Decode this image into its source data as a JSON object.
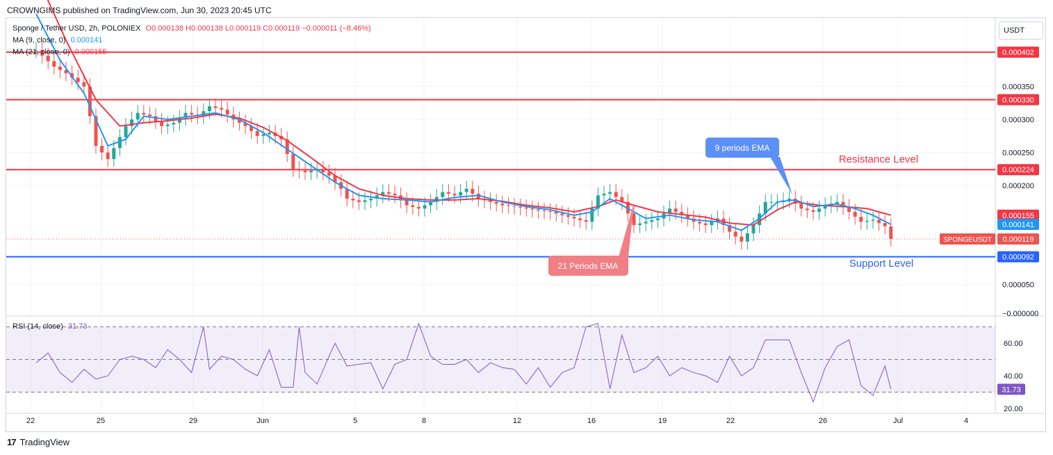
{
  "header": {
    "text": "CROWNGIMS published on TradingView.com, Jun 30, 2023 20:45 UTC"
  },
  "legend": {
    "symbol": "Sponge / Tether USD, 2h, POLONIEX",
    "ohlc": "O0.000138 H0.000138 L0.000119 C0.000119 −0.000011 (−8.46%)",
    "ma9_label": "MA (9, close, 0)",
    "ma9_value": "0.000141",
    "ma21_label": "MA (21, close, 0)",
    "ma21_value": "0.000155",
    "rsi_label": "RSI (14, close)",
    "rsi_value": "31.73"
  },
  "currency_button": "USDT",
  "footer": {
    "logo": "17",
    "brand": "TradingView"
  },
  "annotations": {
    "ema9": "9 periods EMA",
    "ema21": "21 Periods EMA",
    "resistance": "Resistance Level",
    "support": "Support Level"
  },
  "colors": {
    "up": "#26a69a",
    "down": "#ef5350",
    "ma9": "#2196f3",
    "ma21": "#f23645",
    "level_red": "#f23645",
    "level_blue": "#2962ff",
    "rsi": "#7e57c2"
  },
  "chart_data": {
    "type": "candlestick",
    "price_axis": {
      "ticks": [
        0.00035,
        0.0003,
        0.00025,
        0.0002,
        5e-05
      ],
      "labels": [
        "0.000350",
        "0.000300",
        "0.000250",
        "0.000200",
        "0.000050"
      ],
      "bottom_label": "−0.000000"
    },
    "levels": [
      {
        "value": 0.000402,
        "label": "0.000402",
        "color": "red"
      },
      {
        "value": 0.00033,
        "label": "0.000330",
        "color": "red"
      },
      {
        "value": 0.000224,
        "label": "0.000224",
        "color": "red"
      },
      {
        "value": 9.2e-05,
        "label": "0.000092",
        "color": "blue"
      }
    ],
    "price_tags": [
      {
        "value": 0.000155,
        "label": "0.000155",
        "type": "ma21"
      },
      {
        "value": 0.000141,
        "label": "0.000141",
        "type": "ma9"
      },
      {
        "value": 0.000119,
        "label": "0.000119",
        "type": "last",
        "symbol": "SPONGEUSDT"
      }
    ],
    "x_ticks": [
      "22",
      "25",
      "29",
      "Jun",
      "5",
      "8",
      "12",
      "16",
      "19",
      "22",
      "26",
      "Jul",
      "4"
    ],
    "close_path": [
      [
        0,
        0.000405
      ],
      [
        3,
        0.00038
      ],
      [
        5,
        0.00037
      ],
      [
        8,
        0.00035
      ],
      [
        10,
        0.00026
      ],
      [
        12,
        0.00024
      ],
      [
        15,
        0.00029
      ],
      [
        17,
        0.00031
      ],
      [
        19,
        0.000305
      ],
      [
        21,
        0.00029
      ],
      [
        23,
        0.000295
      ],
      [
        25,
        0.00031
      ],
      [
        27,
        0.000305
      ],
      [
        29,
        0.00032
      ],
      [
        31,
        0.000315
      ],
      [
        33,
        0.0003
      ],
      [
        35,
        0.00029
      ],
      [
        37,
        0.000275
      ],
      [
        39,
        0.00028
      ],
      [
        41,
        0.00027
      ],
      [
        43,
        0.000225
      ],
      [
        45,
        0.00022
      ],
      [
        47,
        0.000225
      ],
      [
        49,
        0.000215
      ],
      [
        51,
        0.000195
      ],
      [
        52,
        0.00018
      ],
      [
        54,
        0.000175
      ],
      [
        56,
        0.00018
      ],
      [
        58,
        0.00019
      ],
      [
        60,
        0.000185
      ],
      [
        62,
        0.00017
      ],
      [
        64,
        0.000165
      ],
      [
        66,
        0.000175
      ],
      [
        68,
        0.00019
      ],
      [
        70,
        0.000185
      ],
      [
        72,
        0.000195
      ],
      [
        74,
        0.00018
      ],
      [
        76,
        0.000175
      ],
      [
        78,
        0.00017
      ],
      [
        80,
        0.000168
      ],
      [
        82,
        0.000165
      ],
      [
        84,
        0.000162
      ],
      [
        86,
        0.00016
      ],
      [
        88,
        0.000155
      ],
      [
        90,
        0.00015
      ],
      [
        92,
        0.000145
      ],
      [
        94,
        0.000185
      ],
      [
        96,
        0.00019
      ],
      [
        98,
        0.000175
      ],
      [
        100,
        0.00014
      ],
      [
        102,
        0.000145
      ],
      [
        104,
        0.00015
      ],
      [
        106,
        0.000165
      ],
      [
        108,
        0.000155
      ],
      [
        110,
        0.000145
      ],
      [
        112,
        0.00014
      ],
      [
        114,
        0.00015
      ],
      [
        116,
        0.00013
      ],
      [
        118,
        0.000115
      ],
      [
        120,
        0.00014
      ],
      [
        122,
        0.000175
      ],
      [
        124,
        0.000175
      ],
      [
        126,
        0.00018
      ],
      [
        128,
        0.000165
      ],
      [
        130,
        0.00016
      ],
      [
        132,
        0.00017
      ],
      [
        134,
        0.000175
      ],
      [
        136,
        0.00016
      ],
      [
        138,
        0.000145
      ],
      [
        140,
        0.000148
      ],
      [
        142,
        0.000138
      ],
      [
        143,
        0.000119
      ]
    ],
    "ema9_path": [
      [
        0,
        0.00046
      ],
      [
        4,
        0.00039
      ],
      [
        8,
        0.00034
      ],
      [
        12,
        0.00026
      ],
      [
        15,
        0.00027
      ],
      [
        18,
        0.000305
      ],
      [
        22,
        0.0003
      ],
      [
        26,
        0.000305
      ],
      [
        30,
        0.00031
      ],
      [
        34,
        0.0003
      ],
      [
        38,
        0.00028
      ],
      [
        42,
        0.000255
      ],
      [
        46,
        0.00023
      ],
      [
        50,
        0.000205
      ],
      [
        54,
        0.000185
      ],
      [
        58,
        0.00018
      ],
      [
        62,
        0.000178
      ],
      [
        66,
        0.000175
      ],
      [
        70,
        0.000182
      ],
      [
        74,
        0.000185
      ],
      [
        78,
        0.000175
      ],
      [
        82,
        0.000168
      ],
      [
        86,
        0.000163
      ],
      [
        90,
        0.000155
      ],
      [
        93,
        0.00016
      ],
      [
        96,
        0.00018
      ],
      [
        99,
        0.000165
      ],
      [
        102,
        0.00015
      ],
      [
        106,
        0.000155
      ],
      [
        110,
        0.000148
      ],
      [
        114,
        0.000145
      ],
      [
        118,
        0.000132
      ],
      [
        121,
        0.00015
      ],
      [
        124,
        0.000175
      ],
      [
        127,
        0.000178
      ],
      [
        130,
        0.000168
      ],
      [
        134,
        0.000172
      ],
      [
        137,
        0.000165
      ],
      [
        140,
        0.000155
      ],
      [
        143,
        0.000141
      ]
    ],
    "ema21_path": [
      [
        0,
        0.00052
      ],
      [
        5,
        0.00042
      ],
      [
        10,
        0.00033
      ],
      [
        14,
        0.00029
      ],
      [
        18,
        0.000295
      ],
      [
        22,
        0.000298
      ],
      [
        26,
        0.000302
      ],
      [
        30,
        0.000308
      ],
      [
        34,
        0.000302
      ],
      [
        38,
        0.000288
      ],
      [
        42,
        0.000268
      ],
      [
        46,
        0.000242
      ],
      [
        50,
        0.000215
      ],
      [
        54,
        0.000195
      ],
      [
        58,
        0.000185
      ],
      [
        62,
        0.00018
      ],
      [
        66,
        0.000178
      ],
      [
        70,
        0.000178
      ],
      [
        74,
        0.00018
      ],
      [
        78,
        0.000176
      ],
      [
        82,
        0.00017
      ],
      [
        86,
        0.000166
      ],
      [
        90,
        0.00016
      ],
      [
        94,
        0.000168
      ],
      [
        97,
        0.000178
      ],
      [
        100,
        0.00017
      ],
      [
        104,
        0.00016
      ],
      [
        108,
        0.000156
      ],
      [
        112,
        0.000152
      ],
      [
        116,
        0.000143
      ],
      [
        120,
        0.00014
      ],
      [
        124,
        0.000163
      ],
      [
        127,
        0.000175
      ],
      [
        131,
        0.00017
      ],
      [
        135,
        0.000168
      ],
      [
        139,
        0.000165
      ],
      [
        143,
        0.000155
      ]
    ],
    "rsi": {
      "value": 31.73,
      "ticks": [
        60,
        40,
        20
      ],
      "tick_labels": [
        "60.00",
        "40.00",
        "20.00"
      ],
      "band": [
        30,
        70
      ],
      "path": [
        [
          0,
          48
        ],
        [
          2,
          54
        ],
        [
          4,
          42
        ],
        [
          6,
          36
        ],
        [
          8,
          44
        ],
        [
          10,
          38
        ],
        [
          12,
          40
        ],
        [
          14,
          50
        ],
        [
          16,
          52
        ],
        [
          18,
          50
        ],
        [
          20,
          45
        ],
        [
          22,
          56
        ],
        [
          24,
          50
        ],
        [
          26,
          42
        ],
        [
          28,
          70
        ],
        [
          29,
          44
        ],
        [
          31,
          52
        ],
        [
          33,
          50
        ],
        [
          35,
          44
        ],
        [
          37,
          40
        ],
        [
          39,
          56
        ],
        [
          41,
          33
        ],
        [
          43,
          33
        ],
        [
          44,
          70
        ],
        [
          45,
          42
        ],
        [
          47,
          35
        ],
        [
          49,
          52
        ],
        [
          50,
          60
        ],
        [
          52,
          46
        ],
        [
          54,
          47
        ],
        [
          56,
          48
        ],
        [
          58,
          32
        ],
        [
          60,
          47
        ],
        [
          62,
          50
        ],
        [
          64,
          72
        ],
        [
          66,
          52
        ],
        [
          68,
          47
        ],
        [
          70,
          47
        ],
        [
          72,
          50
        ],
        [
          74,
          42
        ],
        [
          76,
          48
        ],
        [
          78,
          45
        ],
        [
          80,
          44
        ],
        [
          82,
          35
        ],
        [
          84,
          45
        ],
        [
          86,
          33
        ],
        [
          88,
          42
        ],
        [
          90,
          45
        ],
        [
          92,
          70
        ],
        [
          94,
          72
        ],
        [
          96,
          32
        ],
        [
          98,
          65
        ],
        [
          100,
          42
        ],
        [
          102,
          45
        ],
        [
          104,
          52
        ],
        [
          106,
          40
        ],
        [
          108,
          45
        ],
        [
          110,
          42
        ],
        [
          112,
          40
        ],
        [
          114,
          36
        ],
        [
          116,
          52
        ],
        [
          118,
          40
        ],
        [
          120,
          45
        ],
        [
          122,
          62
        ],
        [
          124,
          62
        ],
        [
          126,
          62
        ],
        [
          128,
          42
        ],
        [
          130,
          24
        ],
        [
          132,
          45
        ],
        [
          134,
          58
        ],
        [
          136,
          62
        ],
        [
          138,
          34
        ],
        [
          140,
          28
        ],
        [
          142,
          46
        ],
        [
          143,
          31.73
        ]
      ]
    }
  }
}
